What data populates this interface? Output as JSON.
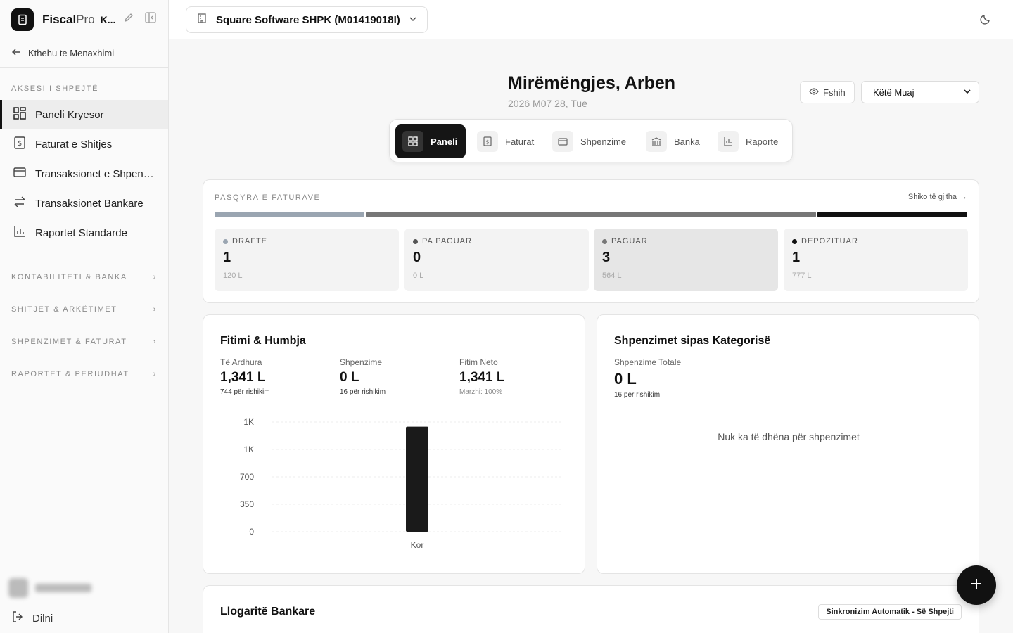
{
  "brand": {
    "name_bold": "Fiscal",
    "name_light": "Pro",
    "company_short": "K..."
  },
  "sidebar": {
    "back_label": "Kthehu te Menaxhimi",
    "quick_title": "AKSESI I SHPEJTË",
    "items": [
      {
        "label": "Paneli Kryesor",
        "icon": "dashboard-icon",
        "active": true
      },
      {
        "label": "Faturat e Shitjes",
        "icon": "dollar-document-icon",
        "active": false
      },
      {
        "label": "Transaksionet e Shpenzi...",
        "icon": "card-icon",
        "active": false
      },
      {
        "label": "Transaksionet Bankare",
        "icon": "transfer-icon",
        "active": false
      },
      {
        "label": "Raportet Standarde",
        "icon": "bar-chart-icon",
        "active": false
      }
    ],
    "groups": [
      {
        "label": "KONTABILITETI & BANKA"
      },
      {
        "label": "SHITJET & ARKËTIMET"
      },
      {
        "label": "SHPENZIMET & FATURAT"
      },
      {
        "label": "RAPORTET & PERIUDHAT"
      }
    ],
    "logout_label": "Dilni"
  },
  "topbar": {
    "company": "Square Software SHPK (M01419018I)"
  },
  "header": {
    "greeting": "Mirëmëngjes, Arben",
    "date": "2026 M07 28, Tue",
    "hide_label": "Fshih",
    "period_value": "Këtë Muaj"
  },
  "tabs": [
    {
      "label": "Paneli",
      "active": true
    },
    {
      "label": "Faturat",
      "active": false
    },
    {
      "label": "Shpenzime",
      "active": false
    },
    {
      "label": "Banka",
      "active": false
    },
    {
      "label": "Raporte",
      "active": false
    }
  ],
  "invoices": {
    "title": "PASQYRA E FATURAVE",
    "view_all": "Shiko të gjitha",
    "statuses": [
      {
        "name": "DRAFTE",
        "count": "1",
        "amount": "120 L",
        "color": "#9aa5b1",
        "share": 0.2
      },
      {
        "name": "PA PAGUAR",
        "count": "0",
        "amount": "0 L",
        "color": "#555555",
        "share": 0.0
      },
      {
        "name": "PAGUAR",
        "count": "3",
        "amount": "564 L",
        "color": "#777777",
        "share": 0.6
      },
      {
        "name": "DEPOZITUAR",
        "count": "1",
        "amount": "777 L",
        "color": "#111111",
        "share": 0.2
      }
    ]
  },
  "pl": {
    "title": "Fitimi & Humbja",
    "revenue": {
      "label": "Të Ardhura",
      "value": "1,341 L",
      "sub": "744 për rishikim"
    },
    "expenses": {
      "label": "Shpenzime",
      "value": "0 L",
      "sub": "16 për rishikim"
    },
    "net": {
      "label": "Fitim Neto",
      "value": "1,341 L",
      "sub": "Marzhi: 100%"
    }
  },
  "chart_data": {
    "type": "bar",
    "categories": [
      "Kor"
    ],
    "values": [
      1341
    ],
    "ylim": [
      0,
      1400
    ],
    "yticks": [
      0,
      350,
      700,
      1050,
      1400
    ],
    "ytick_labels": [
      "0",
      "350",
      "700",
      "1K",
      "1K"
    ],
    "grid": true,
    "color": "#1a1a1a"
  },
  "expenses": {
    "title": "Shpenzimet sipas Kategorisë",
    "total_label": "Shpenzime Totale",
    "total_value": "0 L",
    "sub": "16 për rishikim",
    "empty": "Nuk ka të dhëna për shpenzimet"
  },
  "bank": {
    "title": "Llogaritë Bankare",
    "sync": "Sinkronizim Automatik - Së Shpejti"
  }
}
